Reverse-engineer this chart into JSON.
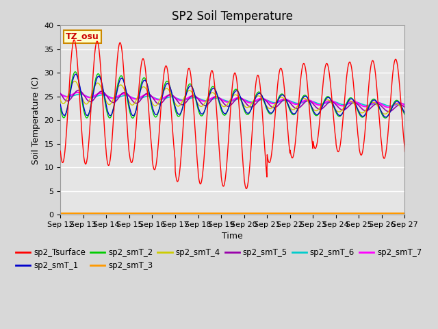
{
  "title": "SP2 Soil Temperature",
  "ylabel": "Soil Temperature (C)",
  "xlabel": "Time",
  "ylim": [
    0,
    40
  ],
  "yticks": [
    0,
    5,
    10,
    15,
    20,
    25,
    30,
    35,
    40
  ],
  "x_tick_labels": [
    "Sep 12",
    "Sep 13",
    "Sep 14",
    "Sep 15",
    "Sep 16",
    "Sep 17",
    "Sep 18",
    "Sep 19",
    "Sep 20",
    "Sep 21",
    "Sep 22",
    "Sep 23",
    "Sep 24",
    "Sep 25",
    "Sep 26",
    "Sep 27"
  ],
  "annotation_text": "TZ_osu",
  "series_colors": {
    "sp2_Tsurface": "#FF0000",
    "sp2_smT_1": "#0000CC",
    "sp2_smT_2": "#00CC00",
    "sp2_smT_3": "#FF9900",
    "sp2_smT_4": "#CCCC00",
    "sp2_smT_5": "#9900AA",
    "sp2_smT_6": "#00CCCC",
    "sp2_smT_7": "#FF00FF"
  },
  "background_color": "#E5E5E5",
  "grid_color": "#FFFFFF",
  "title_fontsize": 12,
  "label_fontsize": 9,
  "tick_fontsize": 8,
  "legend_fontsize": 8.5
}
